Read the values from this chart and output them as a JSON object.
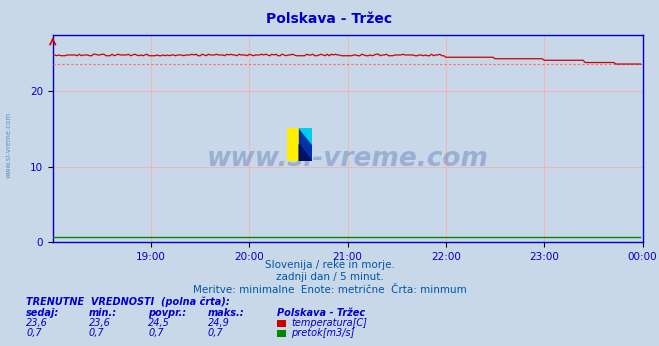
{
  "title": "Polskava - Tržec",
  "title_color": "#0000cc",
  "bg_color": "#c8d8e8",
  "plot_bg_color": "#c8d8e8",
  "grid_color": "#ffaaaa",
  "axis_color": "#0000cc",
  "watermark_text": "www.si-vreme.com",
  "watermark_color": "#4466aa",
  "watermark_alpha": 0.35,
  "subtitle1": "Slovenija / reke in morje.",
  "subtitle2": "zadnji dan / 5 minut.",
  "subtitle3": "Meritve: minimalne  Enote: metrične  Črta: minmum",
  "subtitle_color": "#0055aa",
  "yticks": [
    0,
    10,
    20
  ],
  "ylim": [
    0,
    27.5
  ],
  "xlim": [
    0,
    288
  ],
  "temp_min": 23.6,
  "temp_max": 24.9,
  "temp_avg": 24.5,
  "temp_current": 23.6,
  "flow_min": 0.7,
  "flow_max": 0.7,
  "flow_avg": 0.7,
  "flow_current": 0.7,
  "temp_color": "#cc0000",
  "flow_color": "#008800",
  "min_line_color": "#ff6666",
  "table_title": "TRENUTNE  VREDNOSTI  (polna črta):",
  "table_col1": "sedaj:",
  "table_col2": "min.:",
  "table_col3": "povpr.:",
  "table_col4": "maks.:",
  "table_col5": "Polskava - Tržec",
  "left_label": "www.si-vreme.com",
  "left_label_color": "#4477aa",
  "logo_yellow": "#ffee00",
  "logo_cyan": "#00ccee",
  "logo_blue": "#0033aa",
  "n_points": 288,
  "xtick_hours": [
    "19:00",
    "20:00",
    "21:00",
    "22:00",
    "23:00",
    "00:00"
  ],
  "xtick_pos": [
    48,
    96,
    144,
    192,
    240,
    288
  ]
}
